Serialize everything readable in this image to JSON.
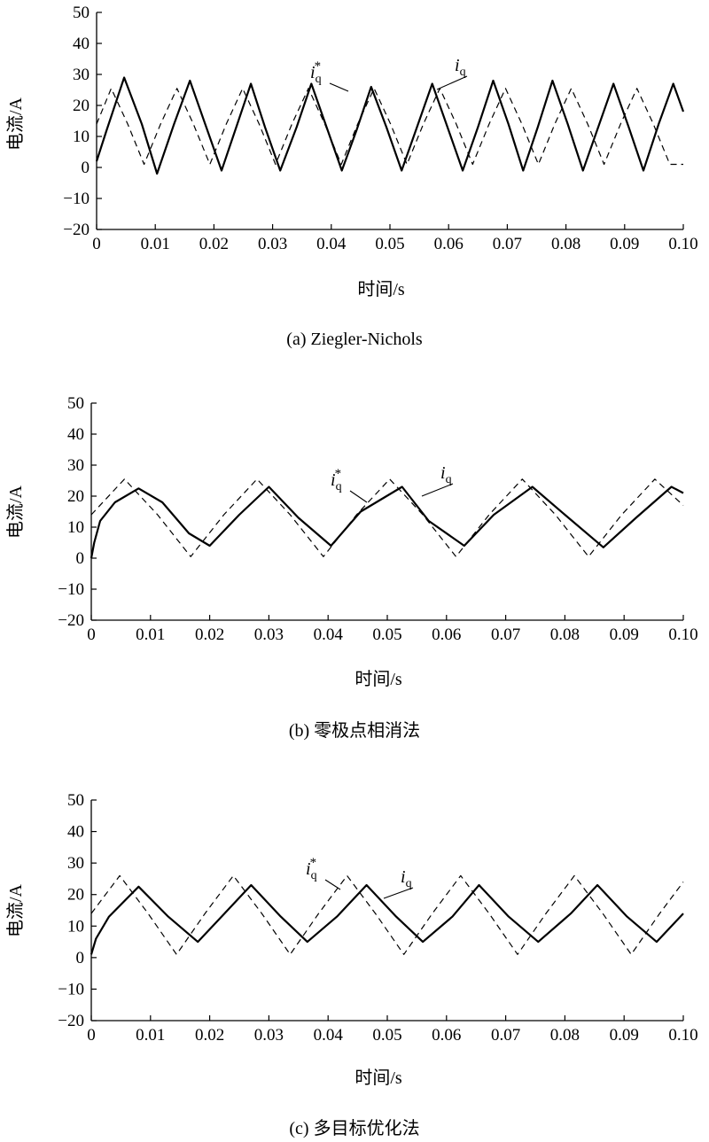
{
  "chart_data": [
    {
      "type": "line",
      "caption": "(a) Ziegler-Nichols",
      "xlabel": "时间/s",
      "ylabel": "电流/A",
      "xlim": [
        0,
        0.1
      ],
      "ylim": [
        -20,
        50
      ],
      "xticks": [
        "0",
        "0.01",
        "0.02",
        "0.03",
        "0.04",
        "0.05",
        "0.06",
        "0.07",
        "0.08",
        "0.09",
        "0.10"
      ],
      "yticks": [
        "−20",
        "−10",
        "0",
        "10",
        "20",
        "30",
        "40",
        "50"
      ],
      "grid": false,
      "series": [
        {
          "name": "i_q*",
          "label": "i",
          "sub": "q",
          "sup": "*",
          "style": "dashed",
          "x": [
            0,
            0.0025,
            0.0053,
            0.0081,
            0.0109,
            0.0137,
            0.0165,
            0.0193,
            0.0221,
            0.0249,
            0.0277,
            0.0305,
            0.0333,
            0.0361,
            0.0389,
            0.0417,
            0.0445,
            0.0473,
            0.0501,
            0.0529,
            0.0557,
            0.0585,
            0.0613,
            0.0641,
            0.0669,
            0.0697,
            0.0725,
            0.0753,
            0.0781,
            0.0809,
            0.0837,
            0.0865,
            0.0893,
            0.0921,
            0.0949,
            0.0977,
            0.1
          ],
          "y": [
            14,
            25.5,
            14,
            1,
            14,
            25.5,
            14,
            1,
            14,
            25.5,
            14,
            1,
            14,
            25.5,
            14,
            1,
            14,
            25.5,
            14,
            1,
            14,
            25.5,
            14,
            1,
            14,
            25.5,
            14,
            1,
            14,
            25.5,
            14,
            1,
            14,
            25.5,
            14,
            1,
            1
          ]
        },
        {
          "name": "i_q",
          "label": "i",
          "sub": "q",
          "sup": "",
          "style": "solid",
          "x": [
            0,
            0.0017,
            0.0047,
            0.0077,
            0.0103,
            0.0132,
            0.0159,
            0.0185,
            0.0213,
            0.0238,
            0.0263,
            0.0287,
            0.0313,
            0.0341,
            0.0366,
            0.0392,
            0.0418,
            0.0443,
            0.0468,
            0.0494,
            0.052,
            0.0546,
            0.0572,
            0.0598,
            0.0624,
            0.065,
            0.0676,
            0.0702,
            0.0727,
            0.0752,
            0.0777,
            0.0803,
            0.0829,
            0.0855,
            0.0881,
            0.0907,
            0.0932,
            0.0958,
            0.0983,
            0.1
          ],
          "y": [
            2,
            12,
            29,
            14,
            -2,
            14,
            28,
            14,
            -1,
            13,
            27,
            13,
            -1,
            13,
            27,
            13,
            -1,
            12,
            26,
            13,
            -1,
            13,
            27,
            13,
            -1,
            13,
            28,
            14,
            -1,
            13,
            28,
            14,
            -1,
            13,
            27,
            13,
            -1,
            14,
            27,
            18
          ]
        }
      ],
      "annotations": [
        {
          "series": "i_q*",
          "x": 0.0425,
          "y": 26
        },
        {
          "series": "i_q",
          "x": 0.058,
          "y": 26
        }
      ]
    },
    {
      "type": "line",
      "caption": "(b) 零极点相消法",
      "xlabel": "时间/s",
      "ylabel": "电流/A",
      "xlim": [
        0,
        0.1
      ],
      "ylim": [
        -20,
        50
      ],
      "xticks": [
        "0",
        "0.01",
        "0.02",
        "0.03",
        "0.04",
        "0.05",
        "0.06",
        "0.07",
        "0.08",
        "0.09",
        "0.10"
      ],
      "yticks": [
        "−20",
        "−10",
        "0",
        "10",
        "20",
        "30",
        "40",
        "50"
      ],
      "grid": false,
      "series": [
        {
          "name": "i_q*",
          "label": "i",
          "sub": "q",
          "sup": "*",
          "style": "dashed",
          "x": [
            0,
            0.0056,
            0.0112,
            0.0168,
            0.0224,
            0.028,
            0.0336,
            0.0392,
            0.0448,
            0.0504,
            0.056,
            0.0616,
            0.0672,
            0.0728,
            0.0784,
            0.084,
            0.0896,
            0.0952,
            0.1
          ],
          "y": [
            14,
            25.5,
            14,
            0.5,
            14,
            25.5,
            14,
            0.5,
            14,
            25.5,
            14,
            0.5,
            14,
            25.5,
            14,
            0.5,
            14,
            25.5,
            17
          ]
        },
        {
          "name": "i_q",
          "label": "i",
          "sub": "q",
          "sup": "",
          "style": "solid",
          "x": [
            0,
            0.0005,
            0.0015,
            0.004,
            0.008,
            0.012,
            0.0165,
            0.02,
            0.025,
            0.03,
            0.035,
            0.0405,
            0.0455,
            0.0525,
            0.057,
            0.063,
            0.068,
            0.0745,
            0.08,
            0.0865,
            0.092,
            0.098,
            0.1
          ],
          "y": [
            0,
            5,
            12,
            18,
            22.5,
            18,
            8,
            4,
            14,
            23,
            13,
            4,
            15,
            23,
            12,
            4,
            14,
            23,
            14,
            3.5,
            13,
            23,
            21
          ]
        }
      ],
      "annotations": [
        {
          "series": "i_q*",
          "x": 0.047,
          "y": 18
        },
        {
          "series": "i_q",
          "x": 0.056,
          "y": 20
        }
      ]
    },
    {
      "type": "line",
      "caption": "(c) 多目标优化法",
      "xlabel": "时间/s",
      "ylabel": "电流/A",
      "xlim": [
        0,
        0.1
      ],
      "ylim": [
        -20,
        50
      ],
      "xticks": [
        "0",
        "0.01",
        "0.02",
        "0.03",
        "0.04",
        "0.05",
        "0.06",
        "0.07",
        "0.08",
        "0.09",
        "0.10"
      ],
      "yticks": [
        "−20",
        "−10",
        "0",
        "10",
        "20",
        "30",
        "40",
        "50"
      ],
      "grid": false,
      "series": [
        {
          "name": "i_q*",
          "label": "i",
          "sub": "q",
          "sup": "*",
          "style": "dashed",
          "x": [
            0,
            0.0048,
            0.0096,
            0.0144,
            0.0192,
            0.024,
            0.0288,
            0.0336,
            0.0384,
            0.0432,
            0.048,
            0.0528,
            0.0576,
            0.0624,
            0.0672,
            0.072,
            0.0768,
            0.0816,
            0.0864,
            0.0912,
            0.096,
            0.1
          ],
          "y": [
            14,
            26,
            14,
            1,
            14,
            26,
            14,
            1,
            14,
            26,
            14,
            1,
            14,
            26,
            14,
            1,
            14,
            26,
            14,
            1,
            14,
            24
          ]
        },
        {
          "name": "i_q",
          "label": "i",
          "sub": "q",
          "sup": "",
          "style": "solid",
          "x": [
            0,
            0.0008,
            0.003,
            0.008,
            0.013,
            0.018,
            0.0225,
            0.027,
            0.032,
            0.0365,
            0.0415,
            0.0465,
            0.0515,
            0.056,
            0.061,
            0.0655,
            0.0705,
            0.0755,
            0.081,
            0.0855,
            0.0905,
            0.0955,
            0.1
          ],
          "y": [
            1,
            6,
            13,
            22.5,
            13,
            5,
            14,
            23,
            13,
            5,
            13,
            23,
            13,
            5,
            13,
            23,
            13,
            5,
            14,
            23,
            13,
            5,
            14
          ]
        }
      ],
      "annotations": [
        {
          "series": "i_q*",
          "x": 0.04,
          "y": 21
        },
        {
          "series": "i_q",
          "x": 0.05,
          "y": 19
        }
      ]
    }
  ]
}
